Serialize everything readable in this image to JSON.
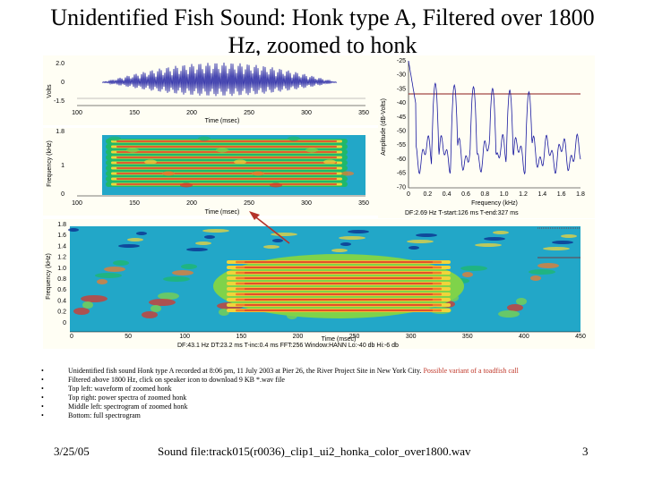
{
  "title": "Unidentified Fish Sound: Honk type A, Filtered over 1800 Hz, zoomed to honk",
  "waveform": {
    "ylabel": "Volts",
    "yticks": [
      "2.0",
      "0",
      "-1.5"
    ],
    "xticks": [
      "100",
      "150",
      "200",
      "250",
      "300",
      "350"
    ],
    "xlabel": "Time (msec)"
  },
  "mid_spec": {
    "ylabel": "Frequency (kHz)",
    "yticks": [
      "1.8",
      "1",
      "0"
    ],
    "xticks": [
      "100",
      "150",
      "200",
      "250",
      "300",
      "350"
    ],
    "xlabel": "Time (msec)"
  },
  "spectrum": {
    "ylabel": "Amplitude (dB-Volts)",
    "yticks": [
      "-25",
      "-30",
      "-35",
      "-40",
      "-45",
      "-50",
      "-55",
      "-60",
      "-65",
      "-70"
    ],
    "xticks": [
      "0",
      "0.2",
      "0.4",
      "0.6",
      "0.8",
      "1.0",
      "1.2",
      "1.4",
      "1.6",
      "1.8"
    ],
    "xlabel": "Frequency (kHz)",
    "info": "DF:2.69 Hz   T-start:126 ms   T-end:327 ms"
  },
  "full_spec": {
    "ylabel": "Frequency (kHz)",
    "yticks": [
      "1.8",
      "1.6",
      "1.4",
      "1.2",
      "1.0",
      "0.8",
      "0.6",
      "0.4",
      "0.2",
      "0"
    ],
    "xticks": [
      "0",
      "50",
      "100",
      "150",
      "200",
      "250",
      "300",
      "350",
      "400",
      "450"
    ],
    "xlabel": "Time (msec)",
    "info": "DF:43.1 Hz   DT:23.2 ms   T-inc:0.4 ms   FFT:256   Window:HANN   Lo:-40 db   Hi:-6 db"
  },
  "bullets": [
    {
      "text": "Unidentified fish sound Honk type A recorded at 8:06 pm, 11 July 2003 at Pier 26, the River Project Site in New York City.",
      "highlight": "Possible variant of a toadfish call"
    },
    {
      "text": "Filtered above 1800 Hz, click on speaker icon to download 9 KB *.wav file"
    },
    {
      "text": "Top left: waveform of zoomed honk"
    },
    {
      "text": "Top right: power spectra of zoomed honk"
    },
    {
      "text": "Middle left: spectrogram of zoomed honk"
    },
    {
      "text": "Bottom: full spectrogram"
    }
  ],
  "footer": {
    "date": "3/25/05",
    "sound_file": "Sound file:track015(r0036)_clip1_ui2_honka_color_over1800.wav",
    "page": "3"
  },
  "colors": {
    "signal": "#1a1aa0",
    "spec_bg": "#22a7c8",
    "marker": "#8b1a1a",
    "arrow": "#b5332a"
  }
}
